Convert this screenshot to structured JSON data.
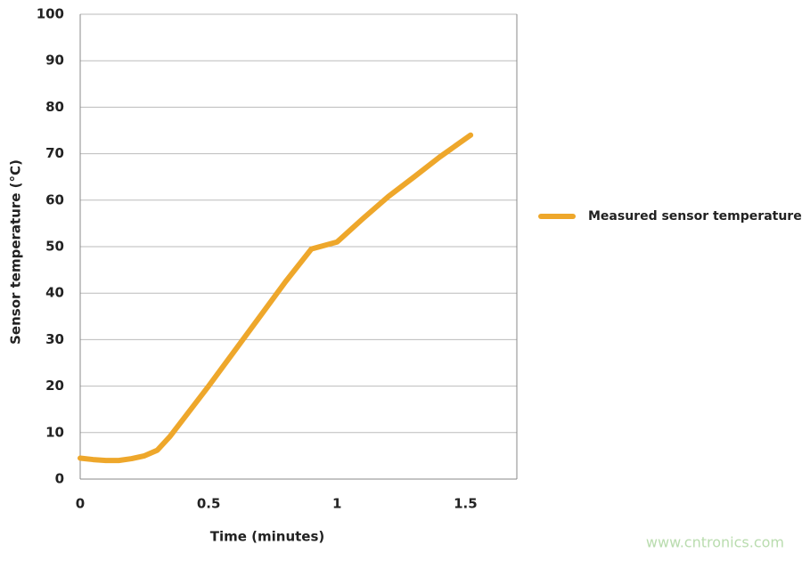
{
  "chart_data": {
    "type": "line",
    "xlabel": "Time (minutes)",
    "ylabel": "Sensor temperature (°C)",
    "series": [
      {
        "name": "Measured sensor temperature",
        "color": "#eea72b",
        "x": [
          0,
          0.05,
          0.1,
          0.15,
          0.2,
          0.25,
          0.3,
          0.35,
          0.4,
          0.5,
          0.6,
          0.7,
          0.8,
          0.9,
          1,
          1.1,
          1.2,
          1.3,
          1.4,
          1.52
        ],
        "values": [
          4.5,
          4.2,
          4,
          4,
          4.4,
          5,
          6.2,
          9.2,
          12.8,
          20,
          27.5,
          35,
          42.5,
          49.5,
          51,
          56,
          60.8,
          65,
          69.3,
          74
        ]
      }
    ],
    "xlim": [
      0,
      1.7
    ],
    "xticks": [
      0,
      0.5,
      1,
      1.5
    ],
    "ylim": [
      0,
      100
    ],
    "yticks": [
      0,
      10,
      20,
      30,
      40,
      50,
      60,
      70,
      80,
      90,
      100
    ],
    "grid": true,
    "legend": "right",
    "watermark": "www.cntronics.com"
  }
}
